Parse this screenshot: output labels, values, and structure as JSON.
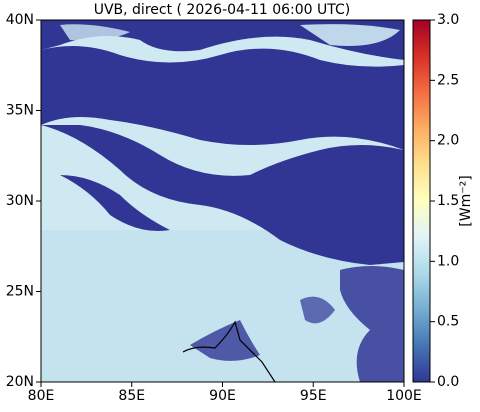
{
  "chart_data": {
    "type": "heatmap",
    "title": "UVB, direct ( 2026-04-11 06:00 UTC)",
    "xlim": [
      80,
      100
    ],
    "ylim": [
      20,
      40
    ],
    "xticks": [
      {
        "value": 80,
        "label": "80E"
      },
      {
        "value": 85,
        "label": "85E"
      },
      {
        "value": 90,
        "label": "90E"
      },
      {
        "value": 95,
        "label": "95E"
      },
      {
        "value": 100,
        "label": "100E"
      }
    ],
    "yticks": [
      {
        "value": 20,
        "label": "20N"
      },
      {
        "value": 25,
        "label": "25N"
      },
      {
        "value": 30,
        "label": "30N"
      },
      {
        "value": 35,
        "label": "35N"
      },
      {
        "value": 40,
        "label": "40N"
      }
    ],
    "colorbar": {
      "label": "[Wm⁻²]",
      "lim": [
        0,
        3
      ],
      "ticks": [
        {
          "value": 0,
          "label": "0.0"
        },
        {
          "value": 0.5,
          "label": "0.5"
        },
        {
          "value": 1,
          "label": "1.0"
        },
        {
          "value": 1.5,
          "label": "1.5"
        },
        {
          "value": 2,
          "label": "2.0"
        },
        {
          "value": 2.5,
          "label": "2.5"
        },
        {
          "value": 3,
          "label": "3.0"
        }
      ],
      "colormap": [
        "#313695",
        "#4575b4",
        "#74add1",
        "#abd9e9",
        "#e0f3f8",
        "#ffffbf",
        "#fee090",
        "#fdae61",
        "#f46d43",
        "#d73027",
        "#a50026"
      ]
    }
  }
}
